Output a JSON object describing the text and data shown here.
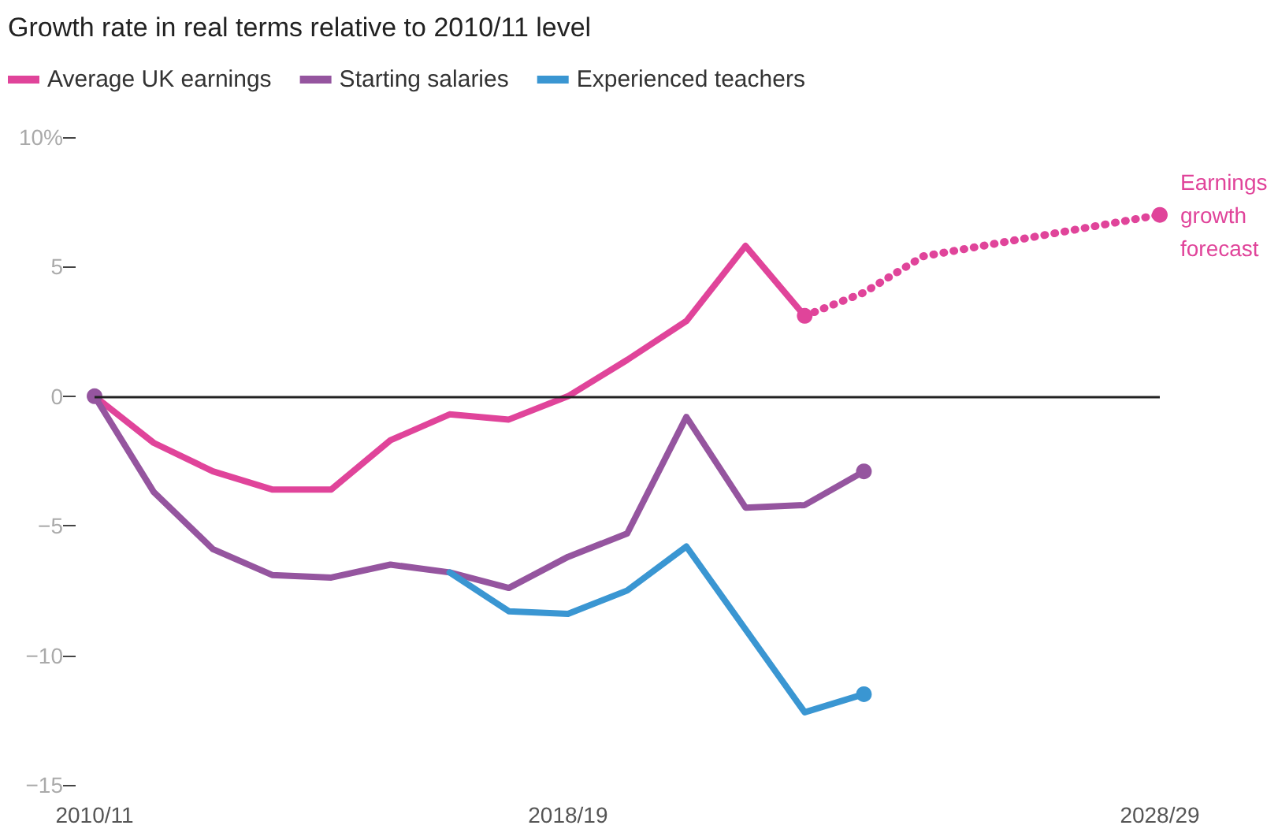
{
  "chart_data": {
    "type": "line",
    "title": "Growth rate in real terms relative to 2010/11 level",
    "categories": [
      "2010/11",
      null,
      null,
      null,
      null,
      null,
      null,
      null,
      "2018/19",
      null,
      null,
      null,
      null,
      null,
      null,
      null,
      null,
      null,
      "2028/29"
    ],
    "series": [
      {
        "name": "Average UK earnings",
        "color": "#e0449a",
        "values": [
          0,
          -1.8,
          -2.9,
          -3.6,
          -3.6,
          -1.7,
          -0.7,
          -0.9,
          0,
          1.4,
          2.9,
          5.8,
          3.1,
          null,
          null,
          null,
          null,
          null,
          null
        ]
      },
      {
        "name": "Starting salaries",
        "color": "#95559f",
        "values": [
          0,
          -3.7,
          -5.9,
          -6.9,
          -7.0,
          -6.5,
          -6.8,
          -7.4,
          -6.2,
          -5.3,
          -0.8,
          -4.3,
          -4.2,
          -2.9,
          null,
          null,
          null,
          null,
          null
        ]
      },
      {
        "name": "Experienced teachers",
        "color": "#3a96d2",
        "values": [
          null,
          null,
          null,
          null,
          null,
          null,
          -6.8,
          -8.3,
          -8.4,
          -7.5,
          -5.8,
          -9.0,
          -12.2,
          -11.5,
          null,
          null,
          null,
          null,
          null
        ]
      },
      {
        "color": "#e0449a",
        "line_style": "dotted",
        "values": [
          null,
          null,
          null,
          null,
          null,
          null,
          null,
          null,
          null,
          null,
          null,
          null,
          3.1,
          4.0,
          5.4,
          5.8,
          6.2,
          6.6,
          7.0
        ]
      }
    ],
    "ylim": [
      -15,
      10
    ],
    "yticks": [
      {
        "value": -15,
        "label": "−15"
      },
      {
        "value": -10,
        "label": "−10"
      },
      {
        "value": -5,
        "label": "−5"
      },
      0,
      5,
      {
        "value": 10,
        "label": "10%"
      }
    ],
    "ref_lines": [
      {
        "axis": "y",
        "value": 0,
        "color": "#222222"
      }
    ],
    "annotations": [
      {
        "text": "Earnings\ngrowth\nforecast",
        "x": "2028/29",
        "y": 7.0
      }
    ],
    "grid": false,
    "legend": "top left"
  }
}
